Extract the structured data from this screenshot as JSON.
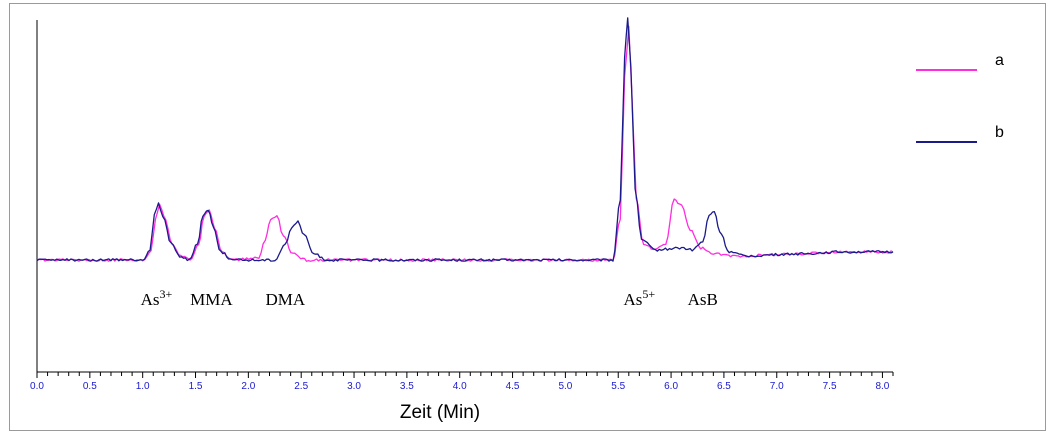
{
  "chart_data": {
    "type": "line",
    "xlabel": "Zeit (Min)",
    "ylabel": "",
    "xlim": [
      0.0,
      8.1
    ],
    "ylim": [
      -115,
      120
    ],
    "x_ticks": [
      "0.0",
      "0.5",
      "1.0",
      "1.5",
      "2.0",
      "2.5",
      "3.0",
      "3.5",
      "4.0",
      "4.5",
      "5.0",
      "5.5",
      "6.0",
      "6.5",
      "7.0",
      "7.5",
      "8.0"
    ],
    "grid": false,
    "legend_position": "top-right",
    "series": [
      {
        "name": "a",
        "color": "#ff2de0",
        "points": [
          [
            0.0,
            0
          ],
          [
            1.0,
            0
          ],
          [
            1.08,
            4
          ],
          [
            1.12,
            20
          ],
          [
            1.16,
            28
          ],
          [
            1.2,
            22
          ],
          [
            1.28,
            8
          ],
          [
            1.36,
            2
          ],
          [
            1.45,
            0
          ],
          [
            1.53,
            8
          ],
          [
            1.58,
            22
          ],
          [
            1.63,
            25
          ],
          [
            1.68,
            16
          ],
          [
            1.75,
            4
          ],
          [
            1.85,
            0
          ],
          [
            2.1,
            1
          ],
          [
            2.16,
            10
          ],
          [
            2.21,
            20
          ],
          [
            2.27,
            22
          ],
          [
            2.33,
            12
          ],
          [
            2.42,
            3
          ],
          [
            2.55,
            0
          ],
          [
            5.45,
            0
          ],
          [
            5.52,
            20
          ],
          [
            5.56,
            90
          ],
          [
            5.6,
            115
          ],
          [
            5.63,
            80
          ],
          [
            5.67,
            30
          ],
          [
            5.74,
            8
          ],
          [
            5.85,
            5
          ],
          [
            5.95,
            8
          ],
          [
            6.03,
            30
          ],
          [
            6.1,
            27
          ],
          [
            6.18,
            15
          ],
          [
            6.28,
            6
          ],
          [
            6.4,
            3
          ],
          [
            6.6,
            2
          ],
          [
            7.2,
            3
          ],
          [
            7.6,
            4
          ],
          [
            8.1,
            4
          ]
        ]
      },
      {
        "name": "b",
        "color": "#1a1a8a",
        "points": [
          [
            0.0,
            0
          ],
          [
            1.0,
            0
          ],
          [
            1.07,
            5
          ],
          [
            1.11,
            22
          ],
          [
            1.15,
            28
          ],
          [
            1.19,
            22
          ],
          [
            1.27,
            8
          ],
          [
            1.35,
            2
          ],
          [
            1.44,
            0
          ],
          [
            1.52,
            8
          ],
          [
            1.57,
            22
          ],
          [
            1.62,
            25
          ],
          [
            1.67,
            16
          ],
          [
            1.74,
            4
          ],
          [
            1.85,
            0
          ],
          [
            2.25,
            0
          ],
          [
            2.35,
            8
          ],
          [
            2.41,
            16
          ],
          [
            2.47,
            19
          ],
          [
            2.53,
            12
          ],
          [
            2.62,
            3
          ],
          [
            2.75,
            0
          ],
          [
            5.45,
            0
          ],
          [
            5.52,
            30
          ],
          [
            5.56,
            100
          ],
          [
            5.59,
            120
          ],
          [
            5.62,
            95
          ],
          [
            5.66,
            35
          ],
          [
            5.72,
            10
          ],
          [
            5.85,
            5
          ],
          [
            6.1,
            6
          ],
          [
            6.2,
            5
          ],
          [
            6.3,
            9
          ],
          [
            6.36,
            22
          ],
          [
            6.41,
            24
          ],
          [
            6.46,
            14
          ],
          [
            6.55,
            4
          ],
          [
            6.7,
            2
          ],
          [
            7.2,
            3
          ],
          [
            7.6,
            4
          ],
          [
            8.1,
            4
          ]
        ]
      }
    ],
    "annotations": [
      {
        "text": "As",
        "sup": "3+",
        "x": 1.13
      },
      {
        "text": "MMA",
        "x": 1.65
      },
      {
        "text": "DMA",
        "x": 2.35
      },
      {
        "text": "As",
        "sup": "5+",
        "x": 5.7
      },
      {
        "text": "AsB",
        "x": 6.3
      }
    ]
  }
}
